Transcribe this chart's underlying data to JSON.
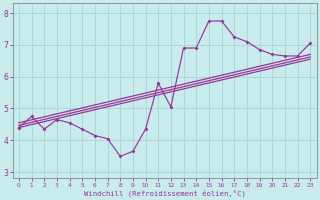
{
  "title": "",
  "xlabel": "Windchill (Refroidissement éolien,°C)",
  "ylabel": "",
  "bg_color": "#c8ecec",
  "grid_color": "#a8d4d4",
  "line_color": "#993399",
  "spine_color": "#888888",
  "xlim": [
    -0.5,
    23.5
  ],
  "ylim": [
    2.8,
    8.3
  ],
  "yticks": [
    3,
    4,
    5,
    6,
    7,
    8
  ],
  "xticks": [
    0,
    1,
    2,
    3,
    4,
    5,
    6,
    7,
    8,
    9,
    10,
    11,
    12,
    13,
    14,
    15,
    16,
    17,
    18,
    19,
    20,
    21,
    22,
    23
  ],
  "data_x": [
    0,
    1,
    2,
    3,
    4,
    5,
    6,
    7,
    8,
    9,
    10,
    11,
    12,
    13,
    14,
    15,
    16,
    17,
    18,
    19,
    20,
    21,
    22,
    23
  ],
  "data_y": [
    4.4,
    4.75,
    4.35,
    4.65,
    4.55,
    4.35,
    4.15,
    4.05,
    3.5,
    3.65,
    4.35,
    5.8,
    5.05,
    6.9,
    6.9,
    7.75,
    7.75,
    7.25,
    7.1,
    6.85,
    6.7,
    6.65,
    6.65,
    7.05
  ],
  "reg_lines": [
    {
      "x0": 0,
      "y0": 4.4,
      "x1": 23,
      "y1": 6.55
    },
    {
      "x0": 0,
      "y0": 4.55,
      "x1": 23,
      "y1": 6.7
    },
    {
      "x0": 0,
      "y0": 4.47,
      "x1": 23,
      "y1": 6.62
    }
  ]
}
